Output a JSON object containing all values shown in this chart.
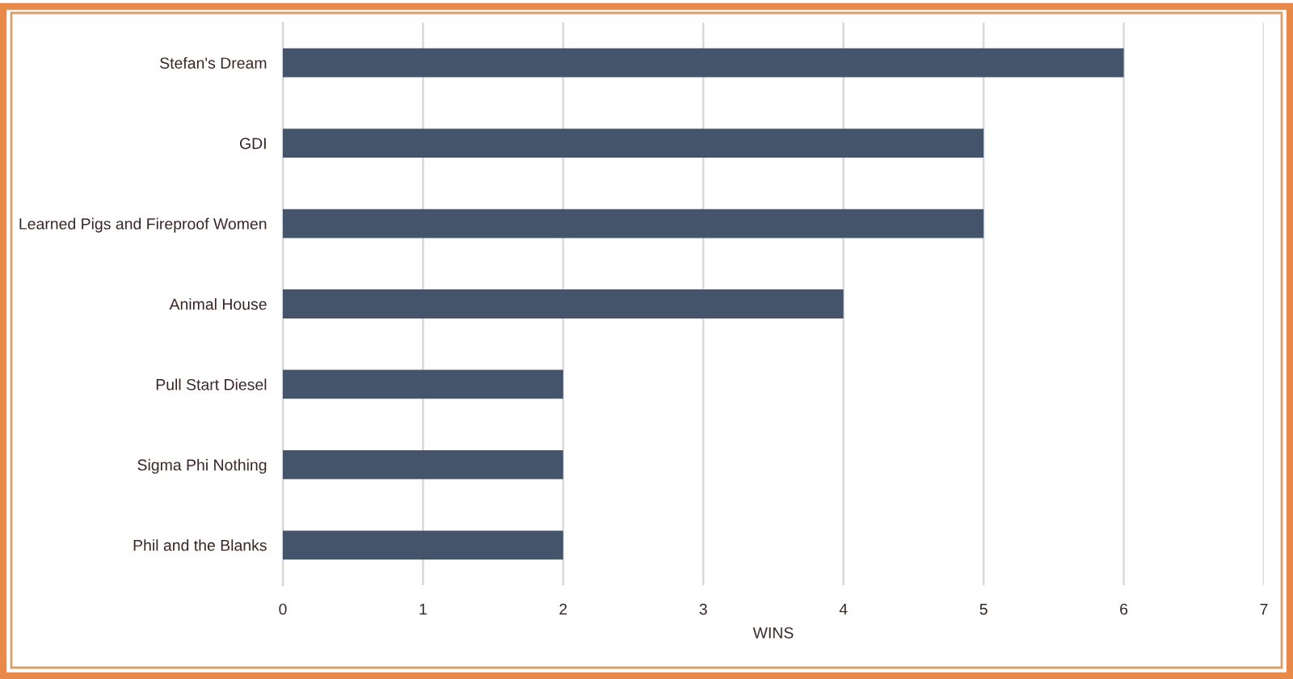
{
  "chart_data": {
    "type": "bar",
    "orientation": "horizontal",
    "categories": [
      "Stefan's Dream",
      "GDI",
      "Learned Pigs and Fireproof Women",
      "Animal House",
      "Pull Start Diesel",
      "Sigma Phi Nothing",
      "Phil and the Blanks"
    ],
    "values": [
      6,
      5,
      5,
      4,
      2,
      2,
      2
    ],
    "color": "#44546a",
    "xlim": [
      0,
      7
    ],
    "xticks": [
      0,
      1,
      2,
      3,
      4,
      5,
      6,
      7
    ],
    "xlabel": "WINS",
    "grid": "x"
  }
}
